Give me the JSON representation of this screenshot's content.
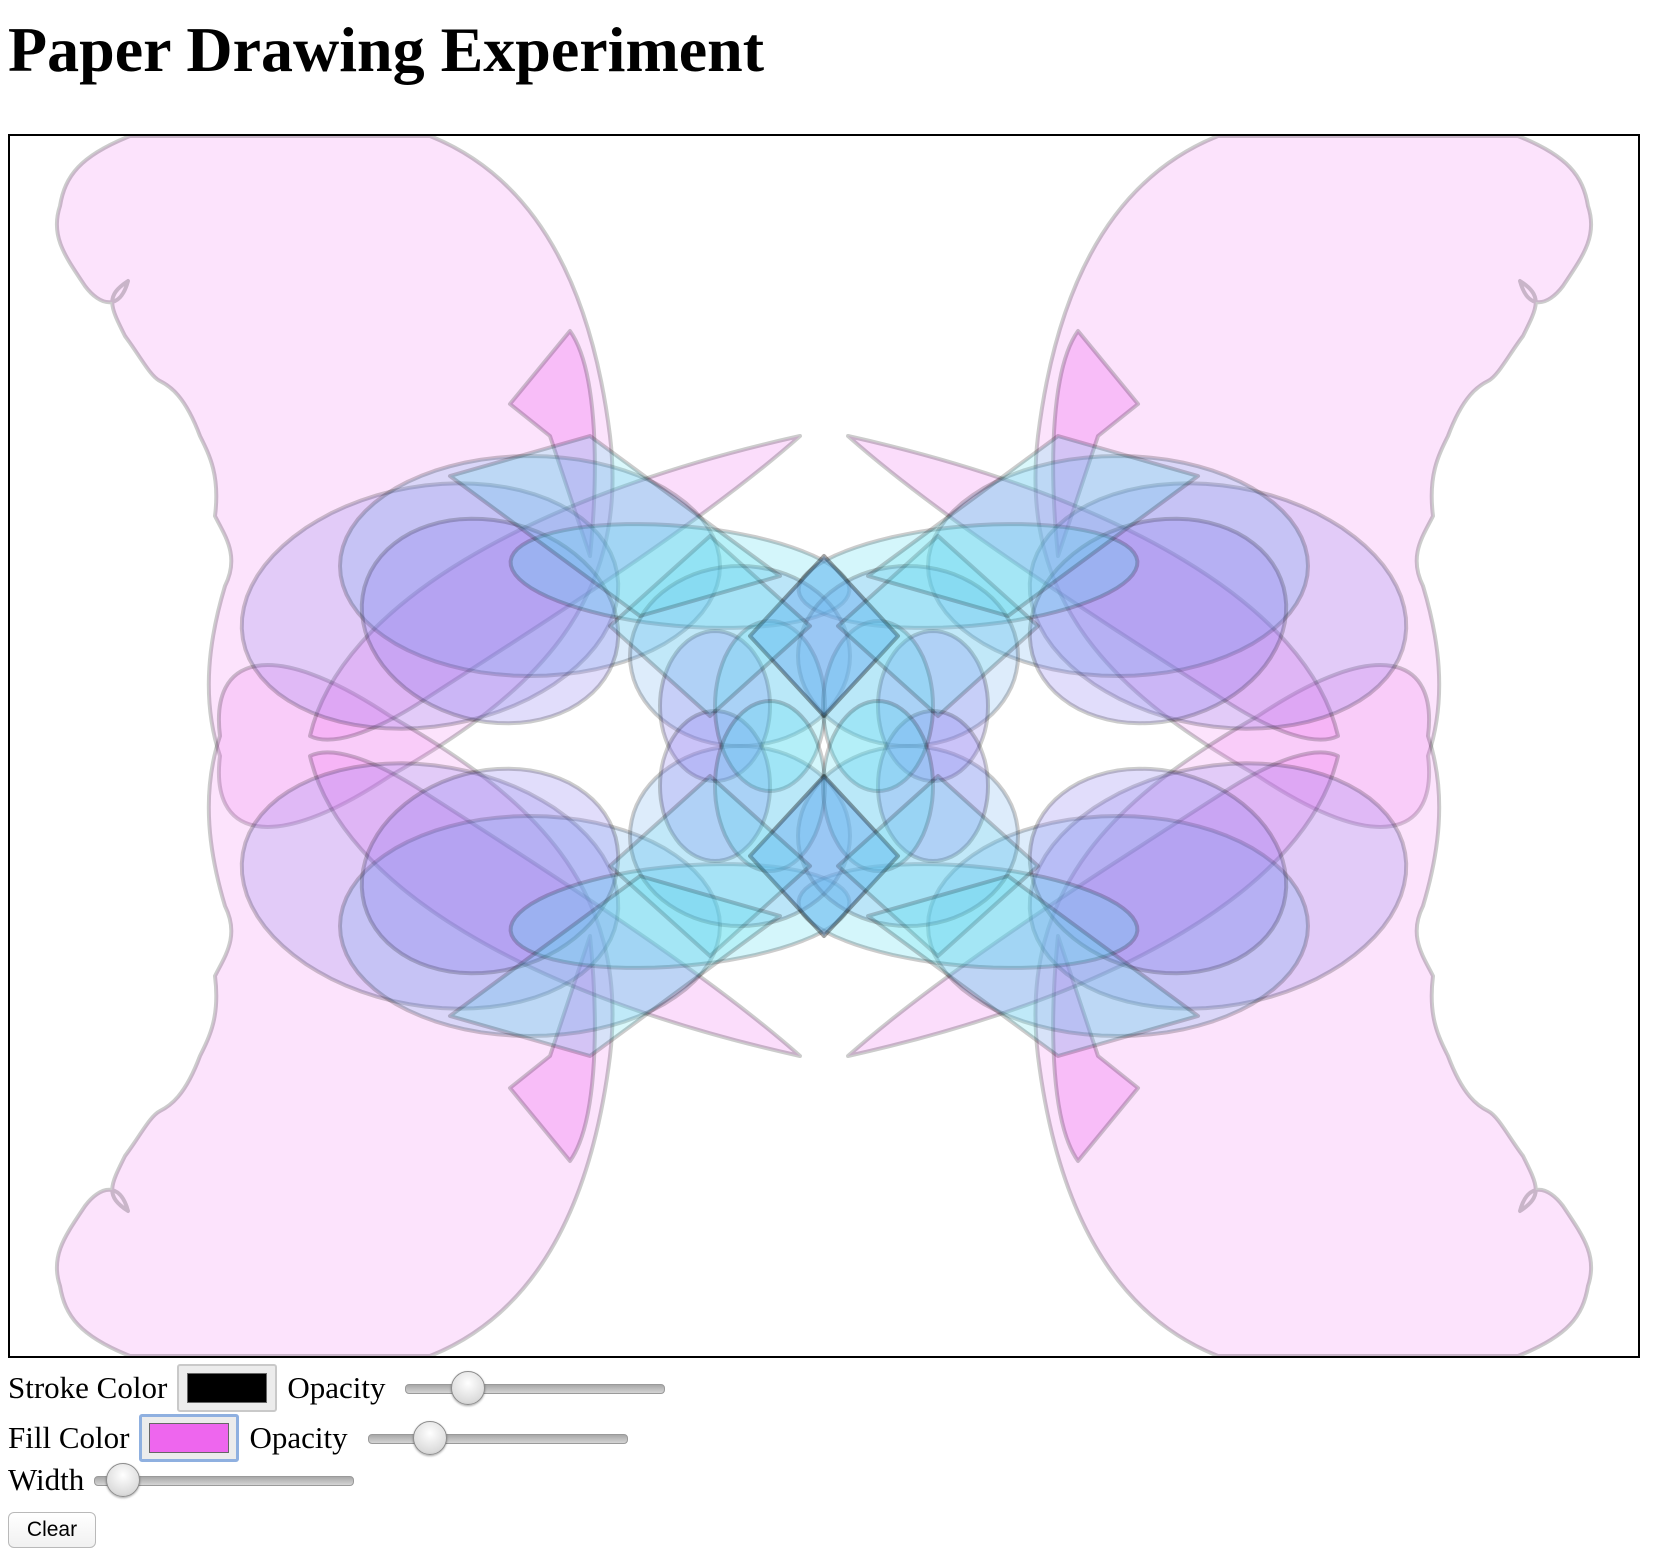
{
  "page": {
    "title": "Paper Drawing Experiment"
  },
  "controls": {
    "stroke": {
      "label": "Stroke Color",
      "color": "#000000",
      "opacity_label": "Opacity",
      "opacity_value": 0.2
    },
    "fill": {
      "label": "Fill Color",
      "color": "#ee66ee",
      "opacity_label": "Opacity",
      "opacity_value": 0.2
    },
    "width": {
      "label": "Width",
      "value": 0.05
    },
    "clear_label": "Clear"
  },
  "drawing": {
    "stroke_color": "#000000",
    "stroke_opacity": 0.2,
    "fill_colors": [
      "#ee66ee",
      "#8877ee",
      "#66aaee",
      "#55ddee"
    ],
    "fill_opacity": 0.2,
    "symmetry": "mirror-both-axes"
  }
}
